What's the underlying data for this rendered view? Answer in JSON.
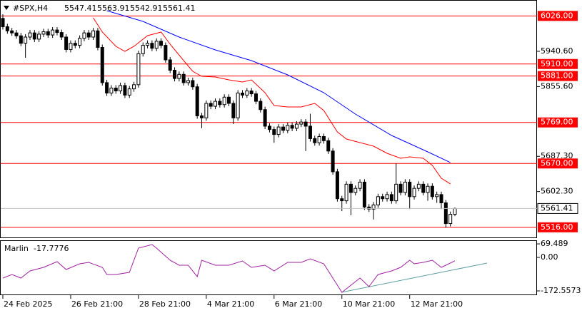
{
  "chart_data": [
    {
      "type": "candlestick",
      "symbol": "#SPX,H4",
      "categories": [
        "24 Feb 2025",
        null,
        null,
        null,
        null,
        null,
        null,
        null,
        null,
        null,
        null,
        null,
        null,
        null,
        null,
        "26 Feb 21:00",
        null,
        null,
        null,
        null,
        null,
        null,
        null,
        null,
        null,
        null,
        null,
        null,
        null,
        null,
        "28 Feb 21:00",
        null,
        null,
        null,
        null,
        null,
        null,
        null,
        null,
        null,
        null,
        null,
        null,
        null,
        null,
        "4 Mar 21:00",
        null,
        null,
        null,
        null,
        null,
        null,
        null,
        null,
        null,
        null,
        null,
        null,
        null,
        null,
        "6 Mar 21:00",
        null,
        null,
        null,
        null,
        null,
        null,
        null,
        null,
        null,
        null,
        null,
        null,
        null,
        null,
        "10 Mar 21:00",
        null,
        null,
        null,
        null,
        null,
        null,
        null,
        null,
        null,
        null,
        null,
        null,
        null,
        null,
        "12 Mar 21:00",
        null,
        null,
        null,
        null,
        null,
        null,
        null,
        null,
        null,
        null
      ],
      "open": [
        6020,
        6000,
        5990,
        5985,
        5978,
        5960,
        5975,
        5985,
        5970,
        5982,
        5988,
        5980,
        5992,
        5986,
        5975,
        5945,
        5960,
        5955,
        5972,
        5985,
        5975,
        5990,
        5950,
        5865,
        5840,
        5852,
        5845,
        5858,
        5835,
        5850,
        5860,
        5935,
        5955,
        5960,
        5948,
        5965,
        5955,
        5920,
        5895,
        5875,
        5885,
        5865,
        5870,
        5855,
        5785,
        5780,
        5815,
        5808,
        5820,
        5812,
        5830,
        5815,
        5780,
        5840,
        5835,
        5845,
        5838,
        5820,
        5800,
        5760,
        5752,
        5740,
        5758,
        5750,
        5762,
        5755,
        5765,
        5770,
        5760,
        5730,
        5720,
        5735,
        5725,
        5700,
        5650,
        5585,
        5580,
        5620,
        5600,
        5610,
        5625,
        5565,
        5560,
        5570,
        5590,
        5585,
        5595,
        5580,
        5620,
        5600,
        5625,
        5590,
        5610,
        5620,
        5600,
        5615,
        5590,
        5595,
        5575,
        5525,
        5547.41
      ],
      "high": [
        6030,
        6007,
        5997,
        5992,
        5985,
        5982,
        5992,
        5992,
        5989,
        5995,
        5995,
        5999,
        5999,
        5993,
        5982,
        5967,
        5967,
        5979,
        5992,
        5992,
        5997,
        5997,
        5957,
        5872,
        5859,
        5859,
        5865,
        5865,
        5857,
        5867,
        5942,
        5962,
        5967,
        5967,
        5972,
        5972,
        5962,
        5927,
        5902,
        5892,
        5892,
        5877,
        5877,
        5862,
        5792,
        5822,
        5822,
        5827,
        5827,
        5837,
        5837,
        5822,
        5847,
        5847,
        5852,
        5852,
        5845,
        5827,
        5807,
        5767,
        5759,
        5765,
        5765,
        5769,
        5769,
        5772,
        5777,
        5777,
        5790,
        5737,
        5742,
        5742,
        5732,
        5707,
        5657,
        5592,
        5627,
        5627,
        5617,
        5632,
        5632,
        5572,
        5577,
        5597,
        5597,
        5602,
        5602,
        5670,
        5627,
        5632,
        5632,
        5617,
        5627,
        5627,
        5622,
        5622,
        5602,
        5602,
        5582,
        5554,
        5563.91
      ],
      "low": [
        5993,
        5983,
        5978,
        5971,
        5953,
        5925,
        5968,
        5963,
        5963,
        5975,
        5973,
        5973,
        5979,
        5968,
        5938,
        5938,
        5948,
        5948,
        5965,
        5968,
        5968,
        5943,
        5858,
        5833,
        5833,
        5838,
        5838,
        5828,
        5828,
        5843,
        5853,
        5928,
        5948,
        5941,
        5941,
        5948,
        5913,
        5888,
        5868,
        5868,
        5858,
        5858,
        5848,
        5778,
        5755,
        5773,
        5801,
        5801,
        5805,
        5805,
        5808,
        5765,
        5773,
        5828,
        5828,
        5831,
        5813,
        5793,
        5753,
        5745,
        5720,
        5733,
        5743,
        5743,
        5748,
        5748,
        5758,
        5700,
        5723,
        5713,
        5713,
        5718,
        5693,
        5643,
        5578,
        5555,
        5573,
        5545,
        5593,
        5603,
        5558,
        5553,
        5535,
        5563,
        5578,
        5578,
        5573,
        5573,
        5593,
        5593,
        5560,
        5583,
        5603,
        5593,
        5580,
        5583,
        5575,
        5560,
        5515,
        5518,
        5542.91
      ],
      "close": [
        6000,
        5990,
        5985,
        5978,
        5960,
        5975,
        5985,
        5970,
        5982,
        5988,
        5980,
        5992,
        5986,
        5975,
        5945,
        5960,
        5955,
        5972,
        5985,
        5975,
        5990,
        5950,
        5865,
        5840,
        5852,
        5845,
        5858,
        5835,
        5850,
        5860,
        5935,
        5955,
        5960,
        5948,
        5965,
        5955,
        5920,
        5895,
        5875,
        5885,
        5865,
        5870,
        5855,
        5785,
        5780,
        5815,
        5808,
        5820,
        5812,
        5830,
        5815,
        5780,
        5840,
        5835,
        5845,
        5838,
        5820,
        5800,
        5760,
        5752,
        5740,
        5758,
        5750,
        5762,
        5755,
        5765,
        5770,
        5760,
        5730,
        5720,
        5735,
        5725,
        5700,
        5650,
        5585,
        5580,
        5620,
        5600,
        5610,
        5625,
        5565,
        5560,
        5570,
        5590,
        5585,
        5595,
        5580,
        5620,
        5600,
        5625,
        5590,
        5610,
        5620,
        5600,
        5615,
        5590,
        5595,
        5575,
        5525,
        5547.41,
        5561.41
      ],
      "lines": [
        {
          "color": "#ff0000",
          "x": [
            20,
            22,
            25,
            27,
            29,
            32,
            35,
            37,
            40,
            42,
            44,
            47,
            50,
            53,
            55,
            58,
            60,
            63,
            66,
            69,
            71,
            74,
            76,
            79,
            82,
            85,
            88,
            90,
            93,
            95,
            97,
            99
          ],
          "values": [
            6021.4,
            5987,
            5952.6,
            5940.6,
            5952.6,
            5978.4,
            5987,
            5957.8,
            5918.2,
            5892.4,
            5880.4,
            5878.7,
            5871.8,
            5866.6,
            5871.8,
            5840.8,
            5809.9,
            5806.4,
            5806.4,
            5815,
            5797.8,
            5746.2,
            5729,
            5720.4,
            5711.8,
            5694.6,
            5682.6,
            5686,
            5682.6,
            5665.4,
            5634.4,
            5620.7
          ]
        },
        {
          "color": "#0000ff",
          "x": [
            23,
            31,
            39,
            47,
            55,
            63,
            71,
            78,
            86,
            94,
            99
          ],
          "values": [
            6038.6,
            6012.8,
            5975,
            5944,
            5918.2,
            5883.8,
            5840.8,
            5789.2,
            5737.6,
            5698.1,
            5672.3
          ]
        }
      ],
      "levels": [
        {
          "value": 6026,
          "label": "6026.00"
        },
        {
          "value": 5910,
          "label": "5910.00"
        },
        {
          "value": 5881,
          "label": "5881.00"
        },
        {
          "value": 5769,
          "label": "5769.00"
        },
        {
          "value": 5670,
          "label": "5670.00"
        },
        {
          "value": 5516,
          "label": "5516.00"
        }
      ],
      "level_color": "#ff0000",
      "ylim": [
        5491.6,
        6064.4
      ],
      "yticks": [
        {
          "value": 5940.6,
          "label": "5940.60"
        },
        {
          "value": 5855.6,
          "label": "5855.60"
        },
        {
          "value": 5687.3,
          "label": "5687.30"
        },
        {
          "value": 5602.3,
          "label": "5602.30"
        }
      ]
    },
    {
      "type": "line",
      "name": "Marlin",
      "color": "#a020a0",
      "x": [
        0,
        2,
        4,
        6,
        9,
        12,
        14,
        17,
        19,
        22,
        23,
        25,
        28,
        30,
        33,
        34,
        37,
        39,
        41,
        43,
        44,
        47,
        50,
        53,
        55,
        58,
        60,
        63,
        66,
        68,
        71,
        73,
        75,
        77,
        79,
        81,
        83,
        86,
        88,
        90,
        91,
        93,
        95,
        97,
        100
      ],
      "values": [
        -106.4,
        -88.1,
        -106.4,
        -69.7,
        -51.4,
        -22,
        -62.4,
        -33,
        -25.7,
        -51.4,
        -88.1,
        -88.1,
        -77.1,
        47.7,
        66.1,
        47.7,
        -14.7,
        -40.4,
        -40.4,
        -99.1,
        -14.7,
        -40.4,
        -40.4,
        -18.4,
        -51.4,
        -40.4,
        -69.7,
        -25.7,
        -25.7,
        -7.3,
        -33,
        -106.4,
        -179.8,
        -143.1,
        -106.4,
        -150.5,
        -88.1,
        -69.7,
        -51.4,
        -14.7,
        -33,
        -25.7,
        -14.7,
        -51.4,
        -17.7776
      ],
      "ylim": [
        -190.9,
        84.4
      ],
      "yticks": [
        69.489,
        {
          "value": 0,
          "label": "0.00"
        },
        -172.5573
      ]
    }
  ]
}
